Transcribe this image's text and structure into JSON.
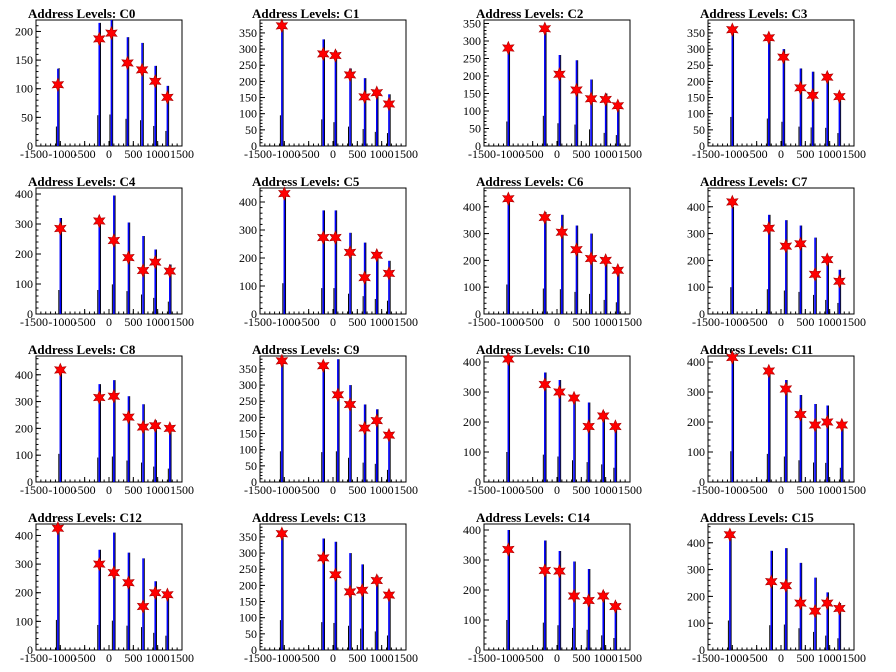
{
  "chart_data": [
    {
      "type": "bar",
      "title": "Address Levels: C0",
      "xlim": [
        -1500,
        1500
      ],
      "ylim": [
        0,
        220
      ],
      "yticks": [
        0,
        50,
        100,
        150,
        200
      ],
      "xtick_labels": [
        "-1500",
        "-1000",
        "-500",
        "0",
        "500",
        "1000",
        "1500"
      ],
      "peaks": [
        {
          "x": -1050,
          "blue": 135,
          "black": 136,
          "star": 107
        },
        {
          "x": -200,
          "blue": 215,
          "black": 215,
          "star": 187
        },
        {
          "x": 50,
          "blue": 220,
          "black": 220,
          "star": 197
        },
        {
          "x": 380,
          "blue": 190,
          "black": 190,
          "star": 145
        },
        {
          "x": 680,
          "blue": 180,
          "black": 180,
          "star": 133
        },
        {
          "x": 950,
          "blue": 140,
          "black": 140,
          "star": 113
        },
        {
          "x": 1200,
          "blue": 105,
          "black": 105,
          "star": 85
        }
      ]
    },
    {
      "type": "bar",
      "title": "Address Levels: C1",
      "xlim": [
        -1500,
        1500
      ],
      "ylim": [
        0,
        390
      ],
      "yticks": [
        0,
        50,
        100,
        150,
        200,
        250,
        300,
        350
      ],
      "xtick_labels": [
        "-1500",
        "-1000",
        "-500",
        "0",
        "500",
        "1000",
        "1500"
      ],
      "peaks": [
        {
          "x": -1050,
          "blue": 380,
          "black": 380,
          "star": 372
        },
        {
          "x": -200,
          "blue": 330,
          "black": 330,
          "star": 285
        },
        {
          "x": 50,
          "blue": 290,
          "black": 295,
          "star": 280
        },
        {
          "x": 350,
          "blue": 240,
          "black": 240,
          "star": 220
        },
        {
          "x": 650,
          "blue": 210,
          "black": 210,
          "star": 152
        },
        {
          "x": 900,
          "blue": 175,
          "black": 175,
          "star": 165
        },
        {
          "x": 1150,
          "blue": 160,
          "black": 160,
          "star": 130
        }
      ]
    },
    {
      "type": "bar",
      "title": "Address Levels: C2",
      "xlim": [
        -1500,
        1500
      ],
      "ylim": [
        0,
        360
      ],
      "yticks": [
        0,
        50,
        100,
        150,
        200,
        250,
        300,
        350
      ],
      "xtick_labels": [
        "-1500",
        "-1000",
        "-500",
        "0",
        "500",
        "1000",
        "1500"
      ],
      "peaks": [
        {
          "x": -1000,
          "blue": 280,
          "black": 280,
          "star": 280
        },
        {
          "x": -250,
          "blue": 345,
          "black": 345,
          "star": 335
        },
        {
          "x": 50,
          "blue": 260,
          "black": 260,
          "star": 205
        },
        {
          "x": 400,
          "blue": 245,
          "black": 245,
          "star": 160
        },
        {
          "x": 700,
          "blue": 190,
          "black": 190,
          "star": 135
        },
        {
          "x": 1000,
          "blue": 150,
          "black": 150,
          "star": 133
        },
        {
          "x": 1250,
          "blue": 125,
          "black": 125,
          "star": 115
        }
      ]
    },
    {
      "type": "bar",
      "title": "Address Levels: C3",
      "xlim": [
        -1500,
        1500
      ],
      "ylim": [
        0,
        390
      ],
      "yticks": [
        0,
        50,
        100,
        150,
        200,
        250,
        300,
        350
      ],
      "xtick_labels": [
        "-1500",
        "-1000",
        "-500",
        "0",
        "500",
        "1000",
        "1500"
      ],
      "peaks": [
        {
          "x": -1000,
          "blue": 360,
          "black": 360,
          "star": 360
        },
        {
          "x": -250,
          "blue": 340,
          "black": 340,
          "star": 335
        },
        {
          "x": 50,
          "blue": 300,
          "black": 300,
          "star": 275
        },
        {
          "x": 400,
          "blue": 240,
          "black": 240,
          "star": 180
        },
        {
          "x": 650,
          "blue": 230,
          "black": 230,
          "star": 157
        },
        {
          "x": 950,
          "blue": 225,
          "black": 225,
          "star": 213
        },
        {
          "x": 1200,
          "blue": 160,
          "black": 160,
          "star": 153
        }
      ]
    },
    {
      "type": "bar",
      "title": "Address Levels: C4",
      "xlim": [
        -1500,
        1500
      ],
      "ylim": [
        0,
        420
      ],
      "yticks": [
        0,
        100,
        200,
        300,
        400
      ],
      "xtick_labels": [
        "-1500",
        "-1000",
        "-500",
        "0",
        "500",
        "1000",
        "1500"
      ],
      "peaks": [
        {
          "x": -1000,
          "blue": 320,
          "black": 320,
          "star": 285
        },
        {
          "x": -200,
          "blue": 320,
          "black": 320,
          "star": 310
        },
        {
          "x": 100,
          "blue": 395,
          "black": 395,
          "star": 245
        },
        {
          "x": 400,
          "blue": 305,
          "black": 305,
          "star": 188
        },
        {
          "x": 700,
          "blue": 260,
          "black": 260,
          "star": 145
        },
        {
          "x": 950,
          "blue": 215,
          "black": 215,
          "star": 173
        },
        {
          "x": 1250,
          "blue": 165,
          "black": 165,
          "star": 143
        }
      ]
    },
    {
      "type": "bar",
      "title": "Address Levels: C5",
      "xlim": [
        -1500,
        1500
      ],
      "ylim": [
        0,
        450
      ],
      "yticks": [
        0,
        100,
        200,
        300,
        400
      ],
      "xtick_labels": [
        "-1500",
        "-1000",
        "-500",
        "0",
        "500",
        "1000",
        "1500"
      ],
      "peaks": [
        {
          "x": -1000,
          "blue": 440,
          "black": 440,
          "star": 430
        },
        {
          "x": -200,
          "blue": 370,
          "black": 370,
          "star": 273
        },
        {
          "x": 50,
          "blue": 370,
          "black": 370,
          "star": 273
        },
        {
          "x": 350,
          "blue": 290,
          "black": 290,
          "star": 220
        },
        {
          "x": 650,
          "blue": 255,
          "black": 255,
          "star": 130
        },
        {
          "x": 900,
          "blue": 215,
          "black": 215,
          "star": 210
        },
        {
          "x": 1150,
          "blue": 190,
          "black": 190,
          "star": 145
        }
      ]
    },
    {
      "type": "bar",
      "title": "Address Levels: C6",
      "xlim": [
        -1500,
        1500
      ],
      "ylim": [
        0,
        470
      ],
      "yticks": [
        0,
        100,
        200,
        300,
        400
      ],
      "xtick_labels": [
        "-1500",
        "-1000",
        "-500",
        "0",
        "500",
        "1000",
        "1500"
      ],
      "peaks": [
        {
          "x": -1000,
          "blue": 440,
          "black": 440,
          "star": 430
        },
        {
          "x": -250,
          "blue": 380,
          "black": 380,
          "star": 360
        },
        {
          "x": 100,
          "blue": 370,
          "black": 370,
          "star": 305
        },
        {
          "x": 400,
          "blue": 330,
          "black": 330,
          "star": 240
        },
        {
          "x": 700,
          "blue": 300,
          "black": 300,
          "star": 207
        },
        {
          "x": 1000,
          "blue": 210,
          "black": 210,
          "star": 200
        },
        {
          "x": 1250,
          "blue": 175,
          "black": 175,
          "star": 163
        }
      ]
    },
    {
      "type": "bar",
      "title": "Address Levels: C7",
      "xlim": [
        -1500,
        1500
      ],
      "ylim": [
        0,
        470
      ],
      "yticks": [
        0,
        100,
        200,
        300,
        400
      ],
      "xtick_labels": [
        "-1500",
        "-1000",
        "-500",
        "0",
        "500",
        "1000",
        "1500"
      ],
      "peaks": [
        {
          "x": -1000,
          "blue": 400,
          "black": 400,
          "star": 418
        },
        {
          "x": -250,
          "blue": 370,
          "black": 370,
          "star": 320
        },
        {
          "x": 100,
          "blue": 350,
          "black": 350,
          "star": 253
        },
        {
          "x": 400,
          "blue": 330,
          "black": 330,
          "star": 262
        },
        {
          "x": 700,
          "blue": 285,
          "black": 285,
          "star": 148
        },
        {
          "x": 950,
          "blue": 210,
          "black": 210,
          "star": 203
        },
        {
          "x": 1200,
          "blue": 165,
          "black": 165,
          "star": 122
        }
      ]
    },
    {
      "type": "bar",
      "title": "Address Levels: C8",
      "xlim": [
        -1500,
        1500
      ],
      "ylim": [
        0,
        470
      ],
      "yticks": [
        0,
        100,
        200,
        300,
        400
      ],
      "xtick_labels": [
        "-1500",
        "-1000",
        "-500",
        "0",
        "500",
        "1000",
        "1500"
      ],
      "peaks": [
        {
          "x": -1000,
          "blue": 420,
          "black": 420,
          "star": 418
        },
        {
          "x": -200,
          "blue": 365,
          "black": 365,
          "star": 315
        },
        {
          "x": 100,
          "blue": 380,
          "black": 380,
          "star": 320
        },
        {
          "x": 400,
          "blue": 320,
          "black": 320,
          "star": 242
        },
        {
          "x": 700,
          "blue": 290,
          "black": 290,
          "star": 205
        },
        {
          "x": 950,
          "blue": 230,
          "black": 230,
          "star": 210
        },
        {
          "x": 1250,
          "blue": 200,
          "black": 200,
          "star": 200
        }
      ]
    },
    {
      "type": "bar",
      "title": "Address Levels: C9",
      "xlim": [
        -1500,
        1500
      ],
      "ylim": [
        0,
        390
      ],
      "yticks": [
        0,
        50,
        100,
        150,
        200,
        250,
        300,
        350
      ],
      "xtick_labels": [
        "-1500",
        "-1000",
        "-500",
        "0",
        "500",
        "1000",
        "1500"
      ],
      "peaks": [
        {
          "x": -1050,
          "blue": 380,
          "black": 380,
          "star": 375
        },
        {
          "x": -200,
          "blue": 370,
          "black": 370,
          "star": 360
        },
        {
          "x": 100,
          "blue": 380,
          "black": 380,
          "star": 270
        },
        {
          "x": 350,
          "blue": 300,
          "black": 300,
          "star": 240
        },
        {
          "x": 650,
          "blue": 240,
          "black": 240,
          "star": 167
        },
        {
          "x": 900,
          "blue": 225,
          "black": 225,
          "star": 190
        },
        {
          "x": 1150,
          "blue": 150,
          "black": 150,
          "star": 145
        }
      ]
    },
    {
      "type": "bar",
      "title": "Address Levels: C10",
      "xlim": [
        -1500,
        1500
      ],
      "ylim": [
        0,
        420
      ],
      "yticks": [
        0,
        100,
        200,
        300,
        400
      ],
      "xtick_labels": [
        "-1500",
        "-1000",
        "-500",
        "0",
        "500",
        "1000",
        "1500"
      ],
      "peaks": [
        {
          "x": -1000,
          "blue": 400,
          "black": 400,
          "star": 410
        },
        {
          "x": -250,
          "blue": 365,
          "black": 365,
          "star": 325
        },
        {
          "x": 50,
          "blue": 340,
          "black": 340,
          "star": 300
        },
        {
          "x": 350,
          "blue": 290,
          "black": 290,
          "star": 280
        },
        {
          "x": 650,
          "blue": 265,
          "black": 265,
          "star": 185
        },
        {
          "x": 950,
          "blue": 235,
          "black": 235,
          "star": 220
        },
        {
          "x": 1200,
          "blue": 190,
          "black": 190,
          "star": 185
        }
      ]
    },
    {
      "type": "bar",
      "title": "Address Levels: C11",
      "xlim": [
        -1500,
        1500
      ],
      "ylim": [
        0,
        420
      ],
      "yticks": [
        0,
        100,
        200,
        300,
        400
      ],
      "xtick_labels": [
        "-1500",
        "-1000",
        "-500",
        "0",
        "500",
        "1000",
        "1500"
      ],
      "peaks": [
        {
          "x": -1000,
          "blue": 410,
          "black": 410,
          "star": 415
        },
        {
          "x": -250,
          "blue": 375,
          "black": 375,
          "star": 370
        },
        {
          "x": 100,
          "blue": 340,
          "black": 340,
          "star": 310
        },
        {
          "x": 400,
          "blue": 290,
          "black": 290,
          "star": 225
        },
        {
          "x": 700,
          "blue": 260,
          "black": 260,
          "star": 190
        },
        {
          "x": 950,
          "blue": 255,
          "black": 255,
          "star": 200
        },
        {
          "x": 1250,
          "blue": 190,
          "black": 190,
          "star": 190
        }
      ]
    },
    {
      "type": "bar",
      "title": "Address Levels: C12",
      "xlim": [
        -1500,
        1500
      ],
      "ylim": [
        0,
        440
      ],
      "yticks": [
        0,
        100,
        200,
        300,
        400
      ],
      "xtick_labels": [
        "-1500",
        "-1000",
        "-500",
        "0",
        "500",
        "1000",
        "1500"
      ],
      "peaks": [
        {
          "x": -1050,
          "blue": 420,
          "black": 420,
          "star": 425
        },
        {
          "x": -200,
          "blue": 350,
          "black": 350,
          "star": 300
        },
        {
          "x": 100,
          "blue": 410,
          "black": 410,
          "star": 270
        },
        {
          "x": 400,
          "blue": 340,
          "black": 340,
          "star": 235
        },
        {
          "x": 700,
          "blue": 320,
          "black": 320,
          "star": 152
        },
        {
          "x": 950,
          "blue": 240,
          "black": 240,
          "star": 200
        },
        {
          "x": 1200,
          "blue": 200,
          "black": 200,
          "star": 193
        }
      ]
    },
    {
      "type": "bar",
      "title": "Address Levels: C13",
      "xlim": [
        -1500,
        1500
      ],
      "ylim": [
        0,
        390
      ],
      "yticks": [
        0,
        50,
        100,
        150,
        200,
        250,
        300,
        350
      ],
      "xtick_labels": [
        "-1500",
        "-1000",
        "-500",
        "0",
        "500",
        "1000",
        "1500"
      ],
      "peaks": [
        {
          "x": -1050,
          "blue": 370,
          "black": 370,
          "star": 360
        },
        {
          "x": -200,
          "blue": 345,
          "black": 345,
          "star": 285
        },
        {
          "x": 50,
          "blue": 335,
          "black": 335,
          "star": 233
        },
        {
          "x": 350,
          "blue": 300,
          "black": 300,
          "star": 180
        },
        {
          "x": 600,
          "blue": 265,
          "black": 265,
          "star": 185
        },
        {
          "x": 900,
          "blue": 230,
          "black": 230,
          "star": 215
        },
        {
          "x": 1150,
          "blue": 180,
          "black": 180,
          "star": 170
        }
      ]
    },
    {
      "type": "bar",
      "title": "Address Levels: C14",
      "xlim": [
        -1500,
        1500
      ],
      "ylim": [
        0,
        420
      ],
      "yticks": [
        0,
        100,
        200,
        300,
        400
      ],
      "xtick_labels": [
        "-1500",
        "-1000",
        "-500",
        "0",
        "500",
        "1000",
        "1500"
      ],
      "peaks": [
        {
          "x": -1000,
          "blue": 400,
          "black": 400,
          "star": 335
        },
        {
          "x": -250,
          "blue": 365,
          "black": 365,
          "star": 265
        },
        {
          "x": 50,
          "blue": 330,
          "black": 330,
          "star": 263
        },
        {
          "x": 350,
          "blue": 295,
          "black": 295,
          "star": 180
        },
        {
          "x": 650,
          "blue": 270,
          "black": 270,
          "star": 165
        },
        {
          "x": 950,
          "blue": 195,
          "black": 195,
          "star": 180
        },
        {
          "x": 1200,
          "blue": 160,
          "black": 160,
          "star": 145
        }
      ]
    },
    {
      "type": "bar",
      "title": "Address Levels: C15",
      "xlim": [
        -1500,
        1500
      ],
      "ylim": [
        0,
        470
      ],
      "yticks": [
        0,
        100,
        200,
        300,
        400
      ],
      "xtick_labels": [
        "-1500",
        "-1000",
        "-500",
        "0",
        "500",
        "1000",
        "1500"
      ],
      "peaks": [
        {
          "x": -1050,
          "blue": 440,
          "black": 440,
          "star": 430
        },
        {
          "x": -200,
          "blue": 370,
          "black": 370,
          "star": 255
        },
        {
          "x": 100,
          "blue": 380,
          "black": 380,
          "star": 240
        },
        {
          "x": 400,
          "blue": 325,
          "black": 325,
          "star": 175
        },
        {
          "x": 700,
          "blue": 270,
          "black": 270,
          "star": 145
        },
        {
          "x": 950,
          "blue": 215,
          "black": 215,
          "star": 175
        },
        {
          "x": 1200,
          "blue": 175,
          "black": 175,
          "star": 155
        }
      ]
    }
  ],
  "colors": {
    "histogram": "#0000ff",
    "outline": "#000000",
    "marker": "#ff0000"
  }
}
